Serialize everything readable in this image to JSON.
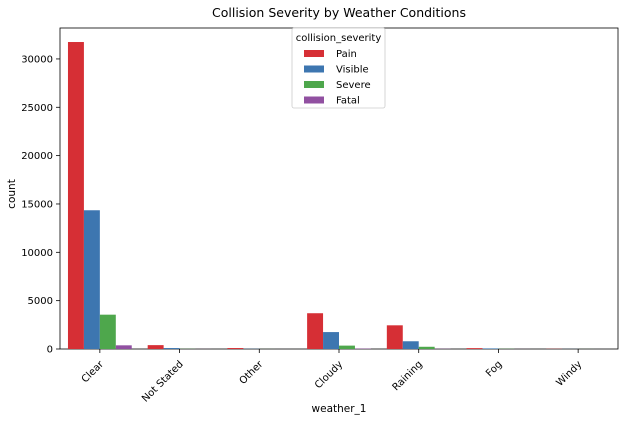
{
  "chart_data": {
    "type": "bar",
    "title": "Collision Severity by Weather Conditions",
    "xlabel": "weather_1",
    "ylabel": "count",
    "ylim": [
      0,
      33200
    ],
    "yticks": [
      0,
      5000,
      10000,
      15000,
      20000,
      25000,
      30000
    ],
    "categories": [
      "Clear",
      "Not Stated",
      "Other",
      "Cloudy",
      "Raining",
      "Fog",
      "Windy"
    ],
    "series": [
      {
        "name": "Pain",
        "color": "#d62f35",
        "values": [
          31750,
          400,
          100,
          3700,
          2450,
          90,
          20
        ]
      },
      {
        "name": "Visible",
        "color": "#3d76b0",
        "values": [
          14350,
          100,
          20,
          1750,
          800,
          60,
          10
        ]
      },
      {
        "name": "Severe",
        "color": "#4ea74c",
        "values": [
          3550,
          15,
          5,
          350,
          230,
          20,
          5
        ]
      },
      {
        "name": "Fatal",
        "color": "#9150a1",
        "values": [
          380,
          5,
          2,
          40,
          20,
          5,
          2
        ]
      }
    ],
    "legend": {
      "title": "collision_severity",
      "placement": "top-center"
    },
    "grid": false
  }
}
